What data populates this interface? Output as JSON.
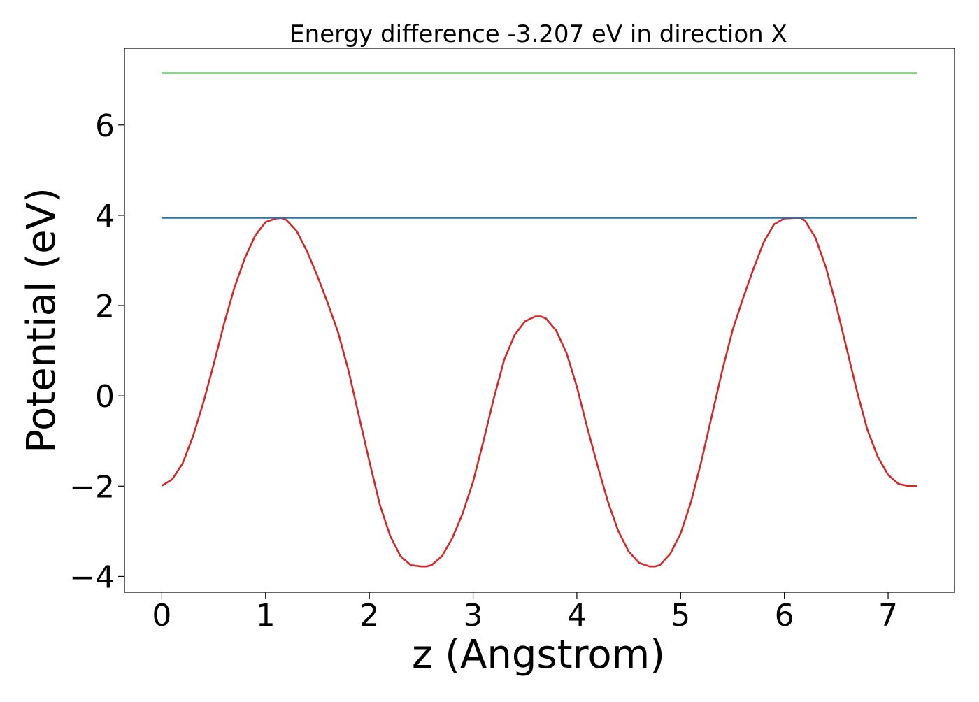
{
  "chart_data": {
    "type": "line",
    "title": "Energy difference -3.207 eV in direction X",
    "xlabel": "z (Angstrom)",
    "ylabel": "Potential (eV)",
    "xlim": [
      -0.36,
      7.64
    ],
    "ylim": [
      -4.35,
      7.7
    ],
    "xticks": [
      0,
      1,
      2,
      3,
      4,
      5,
      6,
      7
    ],
    "xtick_labels": [
      "0",
      "1",
      "2",
      "3",
      "4",
      "5",
      "6",
      "7"
    ],
    "yticks": [
      -4,
      -2,
      0,
      2,
      4,
      6
    ],
    "ytick_labels": [
      "−4",
      "−2",
      "0",
      "2",
      "4",
      "6"
    ],
    "grid": false,
    "legend": "none",
    "series": [
      {
        "color": "#d62728",
        "x": [
          0,
          0.1,
          0.2,
          0.3,
          0.4,
          0.5,
          0.6,
          0.7,
          0.8,
          0.9,
          1.0,
          1.1,
          1.15,
          1.2,
          1.3,
          1.4,
          1.5,
          1.6,
          1.7,
          1.8,
          1.9,
          2.0,
          2.1,
          2.2,
          2.3,
          2.4,
          2.5,
          2.55,
          2.6,
          2.7,
          2.8,
          2.9,
          3.0,
          3.1,
          3.2,
          3.3,
          3.4,
          3.5,
          3.6,
          3.65,
          3.7,
          3.8,
          3.9,
          4.0,
          4.1,
          4.2,
          4.3,
          4.4,
          4.5,
          4.6,
          4.7,
          4.75,
          4.8,
          4.9,
          5.0,
          5.1,
          5.2,
          5.3,
          5.4,
          5.5,
          5.6,
          5.7,
          5.8,
          5.9,
          6.0,
          6.1,
          6.16,
          6.2,
          6.3,
          6.4,
          6.5,
          6.6,
          6.7,
          6.8,
          6.9,
          7.0,
          7.1,
          7.2,
          7.28
        ],
        "y": [
          -1.99,
          -1.85,
          -1.5,
          -0.9,
          -0.15,
          0.7,
          1.6,
          2.4,
          3.05,
          3.55,
          3.85,
          3.93,
          3.94,
          3.9,
          3.65,
          3.2,
          2.65,
          2.05,
          1.4,
          0.55,
          -0.45,
          -1.45,
          -2.4,
          -3.1,
          -3.55,
          -3.75,
          -3.78,
          -3.78,
          -3.75,
          -3.55,
          -3.15,
          -2.6,
          -1.9,
          -1.0,
          -0.05,
          0.8,
          1.35,
          1.65,
          1.76,
          1.76,
          1.72,
          1.45,
          0.95,
          0.2,
          -0.7,
          -1.55,
          -2.35,
          -3.0,
          -3.45,
          -3.7,
          -3.78,
          -3.78,
          -3.75,
          -3.5,
          -3.05,
          -2.35,
          -1.45,
          -0.45,
          0.55,
          1.45,
          2.15,
          2.8,
          3.4,
          3.8,
          3.93,
          3.94,
          3.94,
          3.88,
          3.5,
          2.85,
          2.0,
          1.05,
          0.1,
          -0.75,
          -1.35,
          -1.75,
          -1.95,
          -2.0,
          -1.99
        ]
      },
      {
        "color": "#1f77b4",
        "x": [
          0,
          7.28
        ],
        "y": [
          3.94,
          3.94
        ]
      },
      {
        "color": "#2ca02c",
        "x": [
          0,
          7.28
        ],
        "y": [
          7.15,
          7.15
        ]
      }
    ]
  }
}
